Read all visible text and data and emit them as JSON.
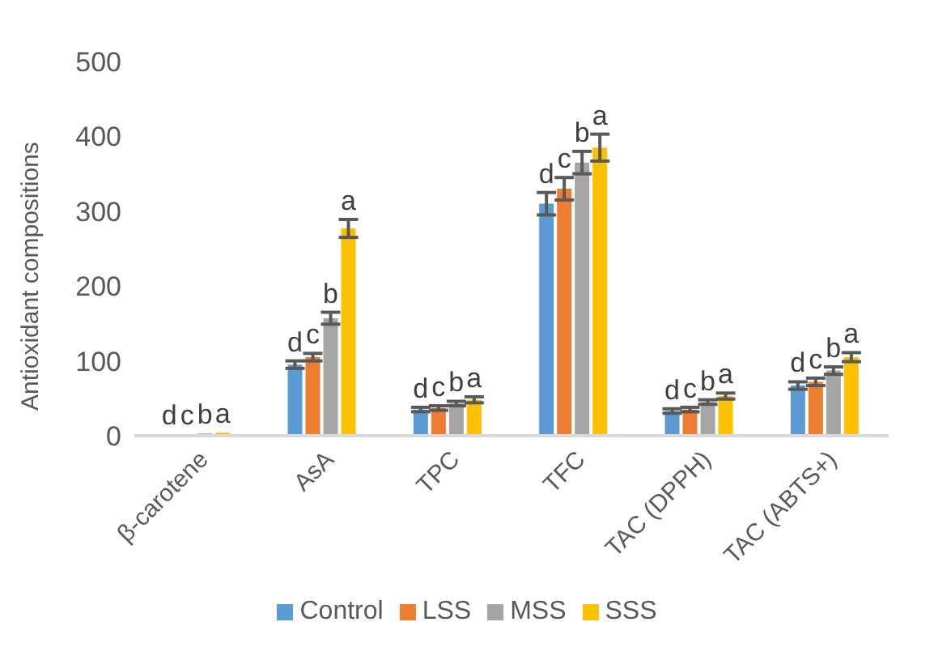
{
  "chart_data": {
    "type": "bar",
    "ylabel": "Antioxidant compositions",
    "categories": [
      "β-carotene",
      "AsA",
      "TPC",
      "TFC",
      "TAC (DPPH)",
      "TAC (ABTS+)"
    ],
    "ylim": [
      0,
      500
    ],
    "yticks": [
      0,
      100,
      200,
      300,
      400,
      500
    ],
    "grid": false,
    "legend": "bottom",
    "series": [
      {
        "name": "Control",
        "color": "#5b9bd5",
        "values": [
          2,
          95,
          35,
          310,
          33,
          67
        ],
        "errors": [
          null,
          5,
          3,
          15,
          3,
          5
        ],
        "value_labels": [
          "d",
          "d",
          "d",
          "d",
          "d",
          "d"
        ]
      },
      {
        "name": "LSS",
        "color": "#ed7d31",
        "values": [
          2,
          105,
          37,
          330,
          35,
          72
        ],
        "errors": [
          null,
          5,
          3,
          15,
          3,
          5
        ],
        "value_labels": [
          "c",
          "c",
          "c",
          "c",
          "c",
          "c"
        ]
      },
      {
        "name": "MSS",
        "color": "#a5a5a5",
        "values": [
          3,
          157,
          43,
          365,
          45,
          87
        ],
        "errors": [
          null,
          8,
          3,
          15,
          3,
          5
        ],
        "value_labels": [
          "b",
          "b",
          "b",
          "b",
          "b",
          "b"
        ]
      },
      {
        "name": "SSS",
        "color": "#ffc000",
        "values": [
          4,
          277,
          48,
          385,
          53,
          105
        ],
        "errors": [
          null,
          12,
          4,
          18,
          4,
          6
        ],
        "value_labels": [
          "a",
          "a",
          "a",
          "a",
          "a",
          "a"
        ]
      }
    ]
  }
}
